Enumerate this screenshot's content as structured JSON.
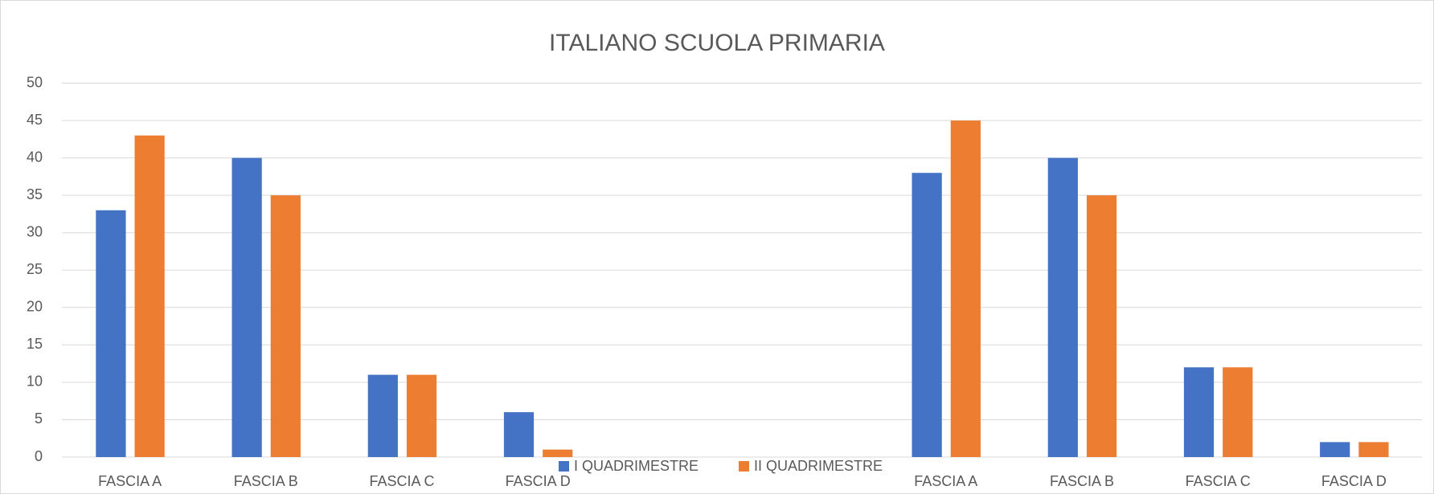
{
  "chart_data": {
    "type": "bar",
    "title": "ITALIANO SCUOLA PRIMARIA",
    "categories": [
      "FASCIA A",
      "FASCIA B",
      "FASCIA C",
      "FASCIA D",
      null,
      null,
      "FASCIA A",
      "FASCIA B",
      "FASCIA C",
      "FASCIA D"
    ],
    "series": [
      {
        "name": "I QUADRIMESTRE",
        "color": "#4472c4",
        "values": [
          33,
          40,
          11,
          6,
          null,
          null,
          38,
          40,
          12,
          2
        ]
      },
      {
        "name": "II QUADRIMESTRE",
        "color": "#ed7d31",
        "values": [
          43,
          35,
          11,
          1,
          null,
          null,
          45,
          35,
          12,
          2
        ]
      }
    ],
    "ylim": [
      0,
      50
    ],
    "yticks": [
      0,
      5,
      10,
      15,
      20,
      25,
      30,
      35,
      40,
      45,
      50
    ],
    "grid": true,
    "legend": "bottom"
  }
}
